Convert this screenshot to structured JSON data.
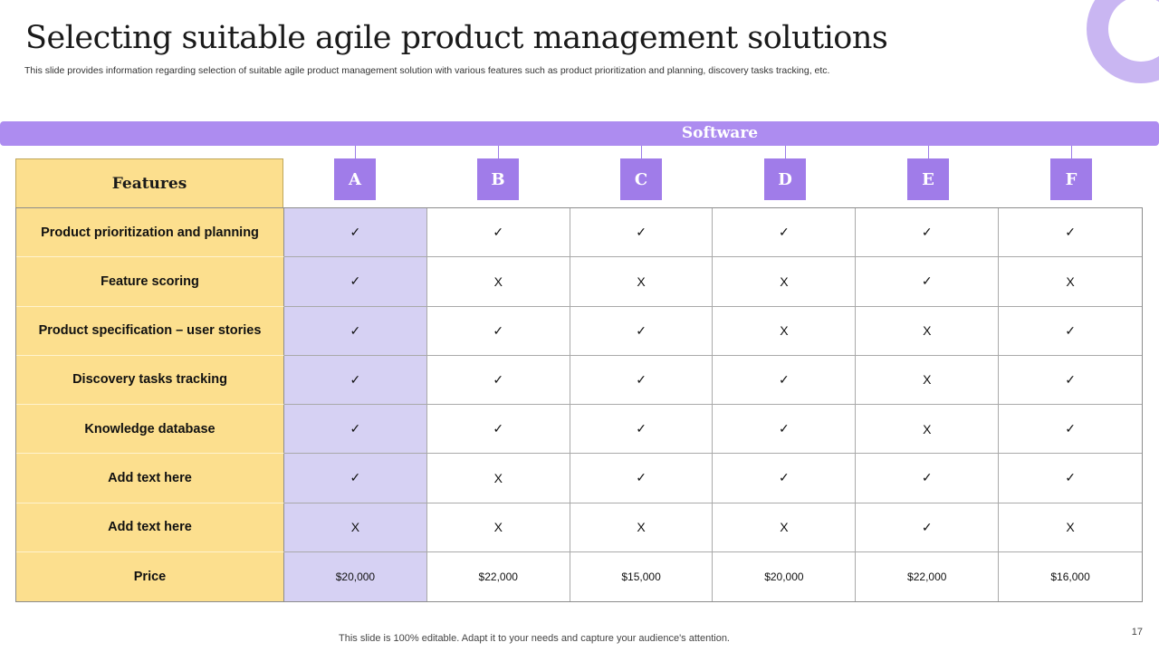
{
  "slide": {
    "title": "Selecting suitable agile product management solutions",
    "subtitle": "This slide provides information regarding selection of suitable agile product management solution with various features such as product prioritization and planning, discovery tasks tracking, etc.",
    "footer": "This slide is 100% editable. Adapt it to your needs and capture your audience's attention.",
    "page_number": "17"
  },
  "table": {
    "group_header": "Software",
    "features_header": "Features",
    "columns": [
      "A",
      "B",
      "C",
      "D",
      "E",
      "F"
    ],
    "rows": [
      {
        "feature": "Product prioritization and planning",
        "values": [
          "✓",
          "✓",
          "✓",
          "✓",
          "✓",
          "✓"
        ]
      },
      {
        "feature": "Feature scoring",
        "values": [
          "✓",
          "X",
          "X",
          "X",
          "✓",
          "X"
        ]
      },
      {
        "feature": "Product specification – user stories",
        "values": [
          "✓",
          "✓",
          "✓",
          "X",
          "X",
          "✓"
        ]
      },
      {
        "feature": "Discovery tasks tracking",
        "values": [
          "✓",
          "✓",
          "✓",
          "✓",
          "X",
          "✓"
        ]
      },
      {
        "feature": "Knowledge database",
        "values": [
          "✓",
          "✓",
          "✓",
          "✓",
          "X",
          "✓"
        ]
      },
      {
        "feature": "Add  text here",
        "values": [
          "✓",
          "X",
          "✓",
          "✓",
          "✓",
          "✓"
        ]
      },
      {
        "feature": "Add  text here",
        "values": [
          "X",
          "X",
          "X",
          "X",
          "✓",
          "X"
        ]
      },
      {
        "feature": "Price",
        "values": [
          "$20,000",
          "$22,000",
          "$15,000",
          "$20,000",
          "$22,000",
          "$16,000"
        ]
      }
    ]
  },
  "colors": {
    "accent_purple": "#ad8cf0",
    "header_box": "#a07ce9",
    "feature_yellow": "#fcdf8e",
    "highlight_lavender": "#d6d1f3"
  }
}
